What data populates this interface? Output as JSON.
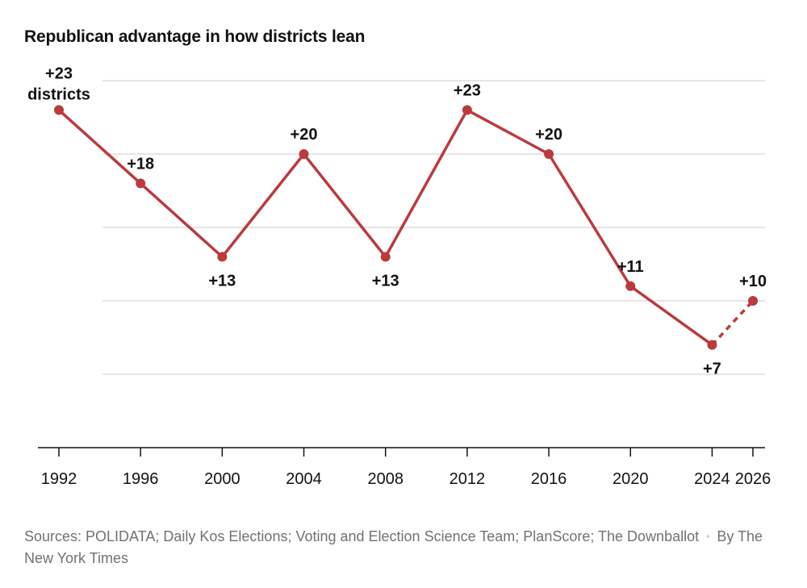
{
  "title": "Republican advantage in how districts lean",
  "source": {
    "text": "Sources: POLIDATA; Daily Kos Elections; Voting and Election Science Team; PlanScore; The Downballot",
    "separator": "•",
    "byline": "By The New York Times"
  },
  "colors": {
    "line": "#bb3a3e",
    "grid": "#cccccc",
    "axis": "#121212"
  },
  "chart_data": {
    "type": "line",
    "title": "Republican advantage in how districts lean",
    "xlabel": "",
    "ylabel": "",
    "unit_label": "districts",
    "x": [
      1992,
      1996,
      2000,
      2004,
      2008,
      2012,
      2016,
      2020,
      2024,
      2026
    ],
    "values": [
      23,
      18,
      13,
      20,
      13,
      23,
      20,
      11,
      7,
      10
    ],
    "labels": [
      "+23",
      "+18",
      "+13",
      "+20",
      "+13",
      "+23",
      "+20",
      "+11",
      "+7",
      "+10"
    ],
    "label_position": [
      "above",
      "above",
      "below",
      "above",
      "below",
      "above",
      "above",
      "above",
      "below",
      "above"
    ],
    "projected_from_index": 8,
    "ylim": [
      0,
      25
    ],
    "gridlines": [
      5,
      10,
      15,
      20,
      25
    ],
    "grid": true,
    "legend": "none"
  }
}
